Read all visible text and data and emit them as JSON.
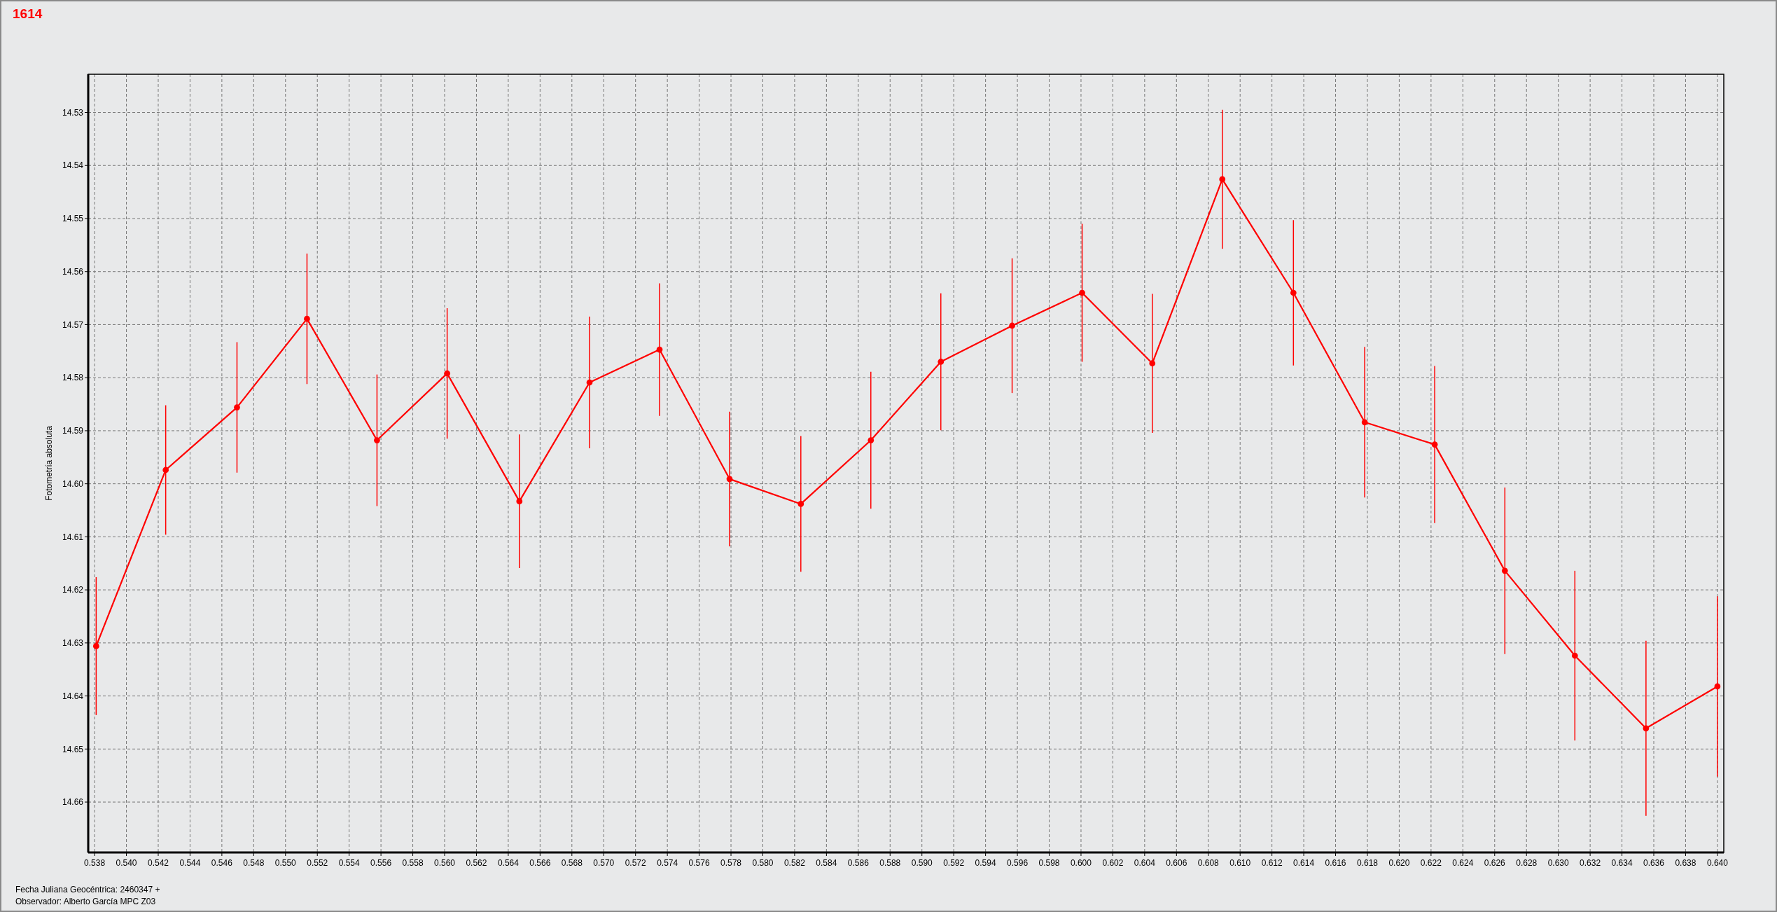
{
  "chart_data": {
    "type": "line",
    "title": "1614",
    "ylabel": "Fotometría absoluta",
    "annotations": [
      "Fecha Juliana Geocéntrica: 2460347 +",
      "Observador: Alberto García MPC Z03"
    ],
    "x": [
      0.5381,
      0.54247,
      0.54695,
      0.55135,
      0.55575,
      0.56016,
      0.5647,
      0.56911,
      0.57351,
      0.57791,
      0.58239,
      0.58679,
      0.59119,
      0.59567,
      0.60007,
      0.60448,
      0.60888,
      0.61335,
      0.61783,
      0.62223,
      0.62664,
      0.63104,
      0.63551,
      0.64
    ],
    "series": [
      {
        "color": "#ff0000",
        "values": [
          14.6306,
          14.5974,
          14.5856,
          14.5689,
          14.5918,
          14.5792,
          14.6033,
          14.5809,
          14.5747,
          14.5991,
          14.6038,
          14.5918,
          14.577,
          14.5702,
          14.564,
          14.5773,
          14.5426,
          14.564,
          14.5884,
          14.5926,
          14.6164,
          14.6324,
          14.6461,
          14.6382
        ],
        "errors": [
          0.013,
          0.0122,
          0.0123,
          0.0123,
          0.0124,
          0.0123,
          0.0126,
          0.0124,
          0.0125,
          0.0127,
          0.0128,
          0.0129,
          0.0129,
          0.0127,
          0.013,
          0.0131,
          0.0131,
          0.0137,
          0.0142,
          0.0148,
          0.0157,
          0.016,
          0.0165,
          0.017
        ]
      }
    ],
    "xlim": [
      0.5376,
      0.6404
    ],
    "xticks": [
      {
        "value": 0.538,
        "label": "0.538"
      },
      {
        "value": 0.54,
        "label": "0.540"
      },
      {
        "value": 0.542,
        "label": "0.542"
      },
      {
        "value": 0.544,
        "label": "0.544"
      },
      {
        "value": 0.546,
        "label": "0.546"
      },
      {
        "value": 0.548,
        "label": "0.548"
      },
      {
        "value": 0.55,
        "label": "0.550"
      },
      {
        "value": 0.552,
        "label": "0.552"
      },
      {
        "value": 0.554,
        "label": "0.554"
      },
      {
        "value": 0.556,
        "label": "0.556"
      },
      {
        "value": 0.558,
        "label": "0.558"
      },
      {
        "value": 0.56,
        "label": "0.560"
      },
      {
        "value": 0.562,
        "label": "0.562"
      },
      {
        "value": 0.564,
        "label": "0.564"
      },
      {
        "value": 0.566,
        "label": "0.566"
      },
      {
        "value": 0.568,
        "label": "0.568"
      },
      {
        "value": 0.57,
        "label": "0.570"
      },
      {
        "value": 0.572,
        "label": "0.572"
      },
      {
        "value": 0.574,
        "label": "0.574"
      },
      {
        "value": 0.576,
        "label": "0.576"
      },
      {
        "value": 0.578,
        "label": "0.578"
      },
      {
        "value": 0.58,
        "label": "0.580"
      },
      {
        "value": 0.582,
        "label": "0.582"
      },
      {
        "value": 0.584,
        "label": "0.584"
      },
      {
        "value": 0.586,
        "label": "0.586"
      },
      {
        "value": 0.588,
        "label": "0.588"
      },
      {
        "value": 0.59,
        "label": "0.590"
      },
      {
        "value": 0.592,
        "label": "0.592"
      },
      {
        "value": 0.594,
        "label": "0.594"
      },
      {
        "value": 0.596,
        "label": "0.596"
      },
      {
        "value": 0.598,
        "label": "0.598"
      },
      {
        "value": 0.6,
        "label": "0.600"
      },
      {
        "value": 0.602,
        "label": "0.602"
      },
      {
        "value": 0.604,
        "label": "0.604"
      },
      {
        "value": 0.606,
        "label": "0.606"
      },
      {
        "value": 0.608,
        "label": "0.608"
      },
      {
        "value": 0.61,
        "label": "0.610"
      },
      {
        "value": 0.612,
        "label": "0.612"
      },
      {
        "value": 0.614,
        "label": "0.614"
      },
      {
        "value": 0.616,
        "label": "0.616"
      },
      {
        "value": 0.618,
        "label": "0.618"
      },
      {
        "value": 0.62,
        "label": "0.620"
      },
      {
        "value": 0.622,
        "label": "0.622"
      },
      {
        "value": 0.624,
        "label": "0.624"
      },
      {
        "value": 0.626,
        "label": "0.626"
      },
      {
        "value": 0.628,
        "label": "0.628"
      },
      {
        "value": 0.63,
        "label": "0.630"
      },
      {
        "value": 0.632,
        "label": "0.632"
      },
      {
        "value": 0.634,
        "label": "0.634"
      },
      {
        "value": 0.636,
        "label": "0.636"
      },
      {
        "value": 0.638,
        "label": "0.638"
      },
      {
        "value": 0.64,
        "label": "0.640"
      }
    ],
    "ylim": [
      14.6695,
      14.5228
    ],
    "yticks": [
      14.53,
      14.54,
      14.55,
      14.56,
      14.57,
      14.58,
      14.59,
      {
        "value": 14.6,
        "label": "14.60"
      },
      14.61,
      14.62,
      14.63,
      14.64,
      14.65,
      14.66
    ],
    "grid": true,
    "marker": "circle",
    "line_style": "solid"
  }
}
